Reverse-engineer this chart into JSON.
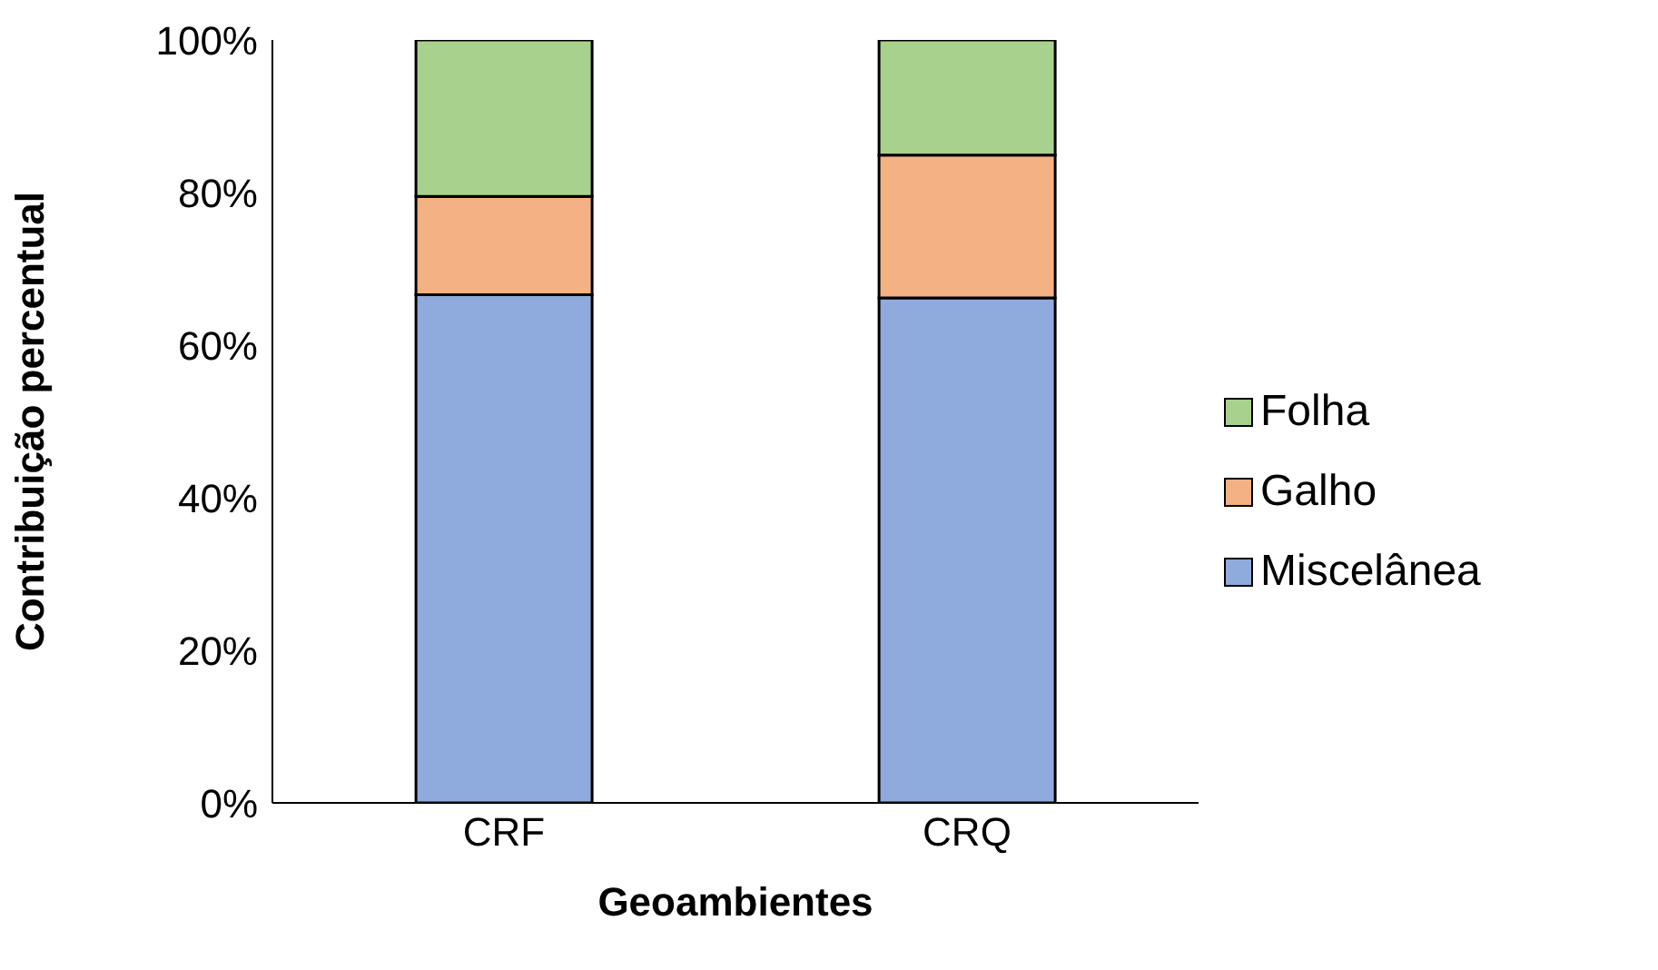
{
  "chart_data": {
    "type": "bar",
    "stacked": true,
    "xlabel": "Geoambientes",
    "ylabel": "Contribuição percentual",
    "categories": [
      "CRF",
      "CRQ"
    ],
    "series": [
      {
        "name": "Miscelânea",
        "color": "#8faadc",
        "values": [
          66.6,
          66.2
        ]
      },
      {
        "name": "Galho",
        "color": "#f4b183",
        "values": [
          12.9,
          18.7
        ]
      },
      {
        "name": "Folha",
        "color": "#a9d18e",
        "values": [
          20.5,
          15.1
        ]
      }
    ],
    "ylim": [
      0,
      100
    ],
    "yticks": [
      {
        "value": 0,
        "label": "0%"
      },
      {
        "value": 20,
        "label": "20%"
      },
      {
        "value": 40,
        "label": "40%"
      },
      {
        "value": 60,
        "label": "60%"
      },
      {
        "value": 80,
        "label": "80%"
      },
      {
        "value": 100,
        "label": "100%"
      }
    ],
    "grid": false,
    "legend": "right"
  }
}
